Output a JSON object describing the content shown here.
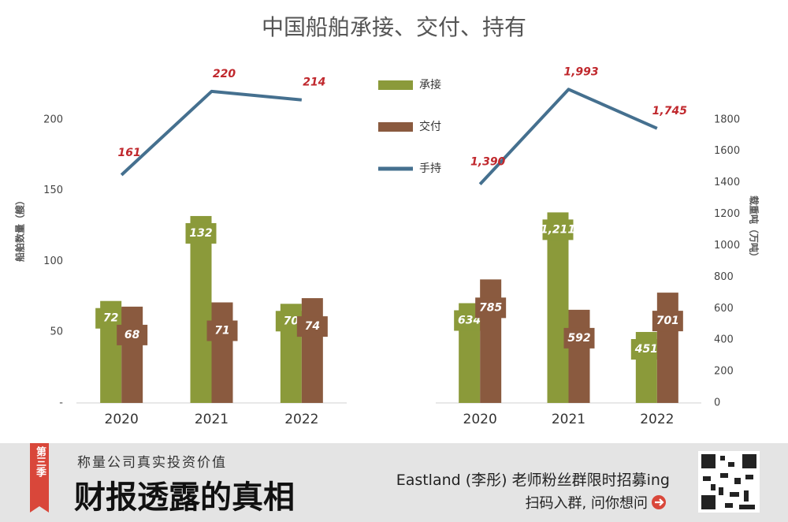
{
  "chart_data": {
    "type": "bar",
    "title": "中国船舶承接、交付、持有",
    "legend": "top-center",
    "series": [
      {
        "name": "承接",
        "color": "#8b9a3a"
      },
      {
        "name": "交付",
        "color": "#8a5a3f"
      },
      {
        "name": "手持",
        "color": "#45708f",
        "type": "line"
      }
    ],
    "panels": [
      {
        "categories": [
          "2020",
          "2021",
          "2022"
        ],
        "ylabel": "船舶数量（艘）",
        "axis": "left",
        "ylim": [
          0,
          240
        ],
        "yticks": [
          {
            "value": 0,
            "label": "-"
          },
          50,
          100,
          150,
          200
        ],
        "values": [
          [
            72,
            132,
            70
          ],
          [
            68,
            71,
            74
          ],
          [
            161,
            220,
            214
          ]
        ]
      },
      {
        "categories": [
          "2020",
          "2021",
          "2022"
        ],
        "ylabel": "载重吨（万吨）",
        "axis": "right",
        "ylim": [
          0,
          2160
        ],
        "yticks": [
          0,
          200,
          400,
          600,
          800,
          1000,
          1200,
          1400,
          1600,
          1800
        ],
        "values": [
          [
            634,
            1211,
            451
          ],
          [
            785,
            592,
            701
          ],
          [
            1390,
            1993,
            1745
          ]
        ],
        "value_labels": [
          [
            "634",
            "1,211",
            "451"
          ],
          [
            "785",
            "592",
            "701"
          ],
          [
            "1,390",
            "1,993",
            "1,745"
          ]
        ]
      }
    ]
  },
  "footer": {
    "season": "第三季",
    "subtitle": "称量公司真实投资价值",
    "title": "财报透露的真相",
    "promo": "Eastland (李彤) 老师粉丝群限时招募ing",
    "cta": "扫码入群, 问你想问"
  }
}
